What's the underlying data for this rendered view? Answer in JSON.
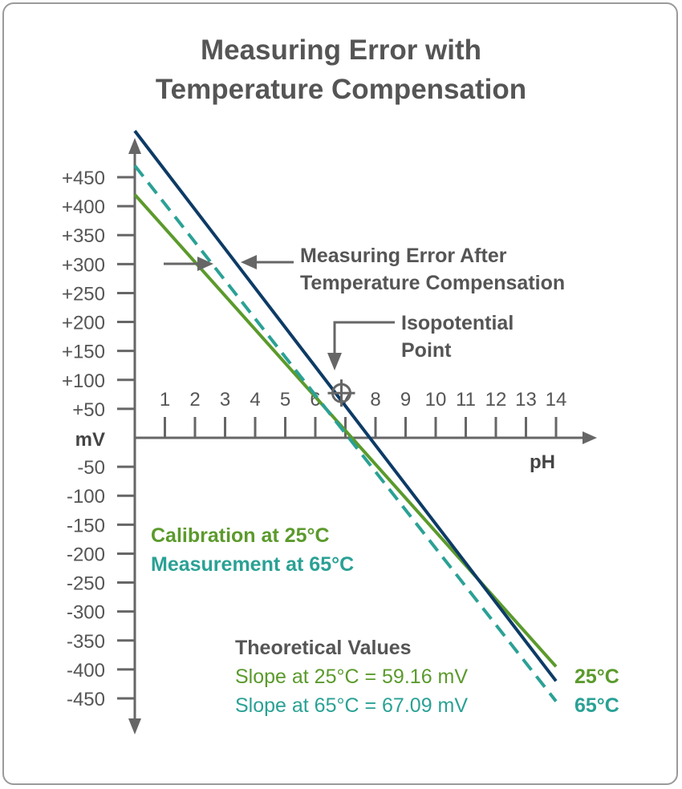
{
  "title_line1": "Measuring Error with",
  "title_line2": "Temperature Compensation",
  "chart_data": {
    "type": "line",
    "x_axis": {
      "label": "pH",
      "ticks": [
        "1",
        "2",
        "3",
        "4",
        "5",
        "6",
        "7",
        "8",
        "9",
        "10",
        "11",
        "12",
        "13",
        "14"
      ],
      "range": [
        0,
        14
      ]
    },
    "y_axis": {
      "label": "mV",
      "ticks": [
        {
          "value": 450,
          "label": "+450"
        },
        {
          "value": 400,
          "label": "+400"
        },
        {
          "value": 350,
          "label": "+350"
        },
        {
          "value": 300,
          "label": "+300"
        },
        {
          "value": 250,
          "label": "+250"
        },
        {
          "value": 200,
          "label": "+200"
        },
        {
          "value": 150,
          "label": "+150"
        },
        {
          "value": 100,
          "label": "+100"
        },
        {
          "value": 50,
          "label": "+50"
        },
        {
          "value": -50,
          "label": "-50"
        },
        {
          "value": -100,
          "label": "-100"
        },
        {
          "value": -150,
          "label": "-150"
        },
        {
          "value": -200,
          "label": "-200"
        },
        {
          "value": -250,
          "label": "-250"
        },
        {
          "value": -300,
          "label": "-300"
        },
        {
          "value": -350,
          "label": "-350"
        },
        {
          "value": -400,
          "label": "-400"
        },
        {
          "value": -450,
          "label": "-450"
        }
      ],
      "range": [
        -450,
        450
      ]
    },
    "series": [
      {
        "name": "Calibration at 25°C",
        "color": "#5b9a2c",
        "dash": "solid",
        "points": [
          [
            0,
            420
          ],
          [
            14,
            -395
          ]
        ]
      },
      {
        "name": "Measurement at 65°C",
        "color": "#2aa195",
        "dash": "dashed",
        "points": [
          [
            0,
            470
          ],
          [
            14,
            -455
          ]
        ]
      },
      {
        "name": "",
        "color": "#0d3b66",
        "dash": "solid",
        "points": [
          [
            0,
            530
          ],
          [
            14,
            -420
          ]
        ]
      }
    ],
    "isopotential_point": {
      "x": 7,
      "y": 80
    },
    "annotations": {
      "error_line1": "Measuring Error After",
      "error_line2": "Temperature Compensation",
      "iso_line1": "Isopotential",
      "iso_line2": "Point"
    },
    "legend": [
      {
        "text": "Calibration at 25°C",
        "color": "#5b9a2c"
      },
      {
        "text": "Measurement at 65°C",
        "color": "#2aa195"
      }
    ],
    "theoretical": {
      "heading": "Theoretical Values",
      "slope25": "Slope at 25°C = 59.16 mV",
      "slope65": "Slope at 65°C = 67.09 mV",
      "label25": "25°C",
      "label65": "65°C",
      "color25": "#5b9a2c",
      "color65": "#2aa195"
    }
  },
  "colors": {
    "axis": "#666666",
    "text": "#555555",
    "annotation": "#555555"
  }
}
